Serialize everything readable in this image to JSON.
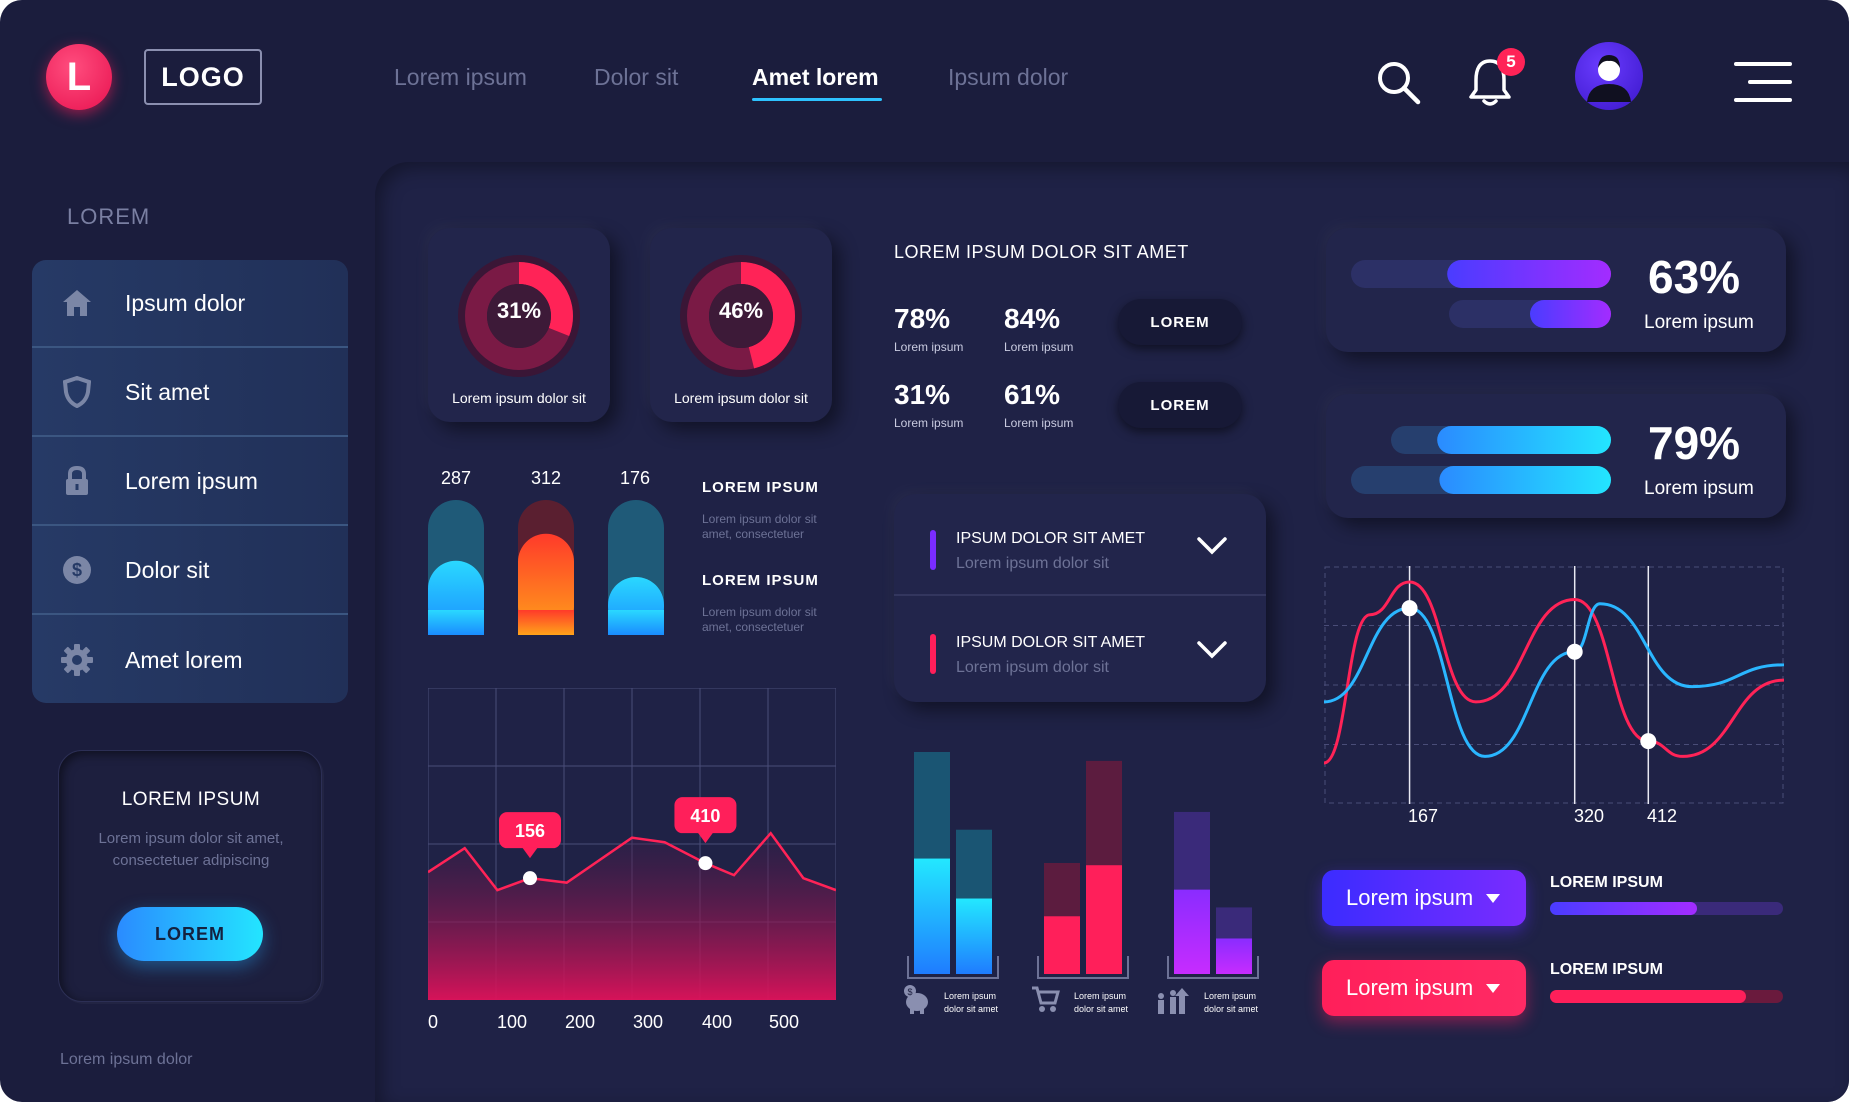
{
  "header": {
    "logo_letter": "L",
    "logo_text": "LOGO",
    "nav": [
      "Lorem ipsum",
      "Dolor sit",
      "Amet lorem",
      "Ipsum dolor"
    ],
    "active_nav": "Amet lorem",
    "notification_count": "5"
  },
  "sidebar": {
    "heading": "LOREM",
    "items": [
      {
        "label": "Ipsum dolor",
        "icon": "home-icon"
      },
      {
        "label": "Sit amet",
        "icon": "shield-icon"
      },
      {
        "label": "Lorem ipsum",
        "icon": "lock-icon"
      },
      {
        "label": "Dolor sit",
        "icon": "dollar-icon"
      },
      {
        "label": "Amet lorem",
        "icon": "gear-icon"
      }
    ],
    "promo": {
      "title": "LOREM IPSUM",
      "text": "Lorem ipsum dolor sit amet, consectetuer adipiscing",
      "button": "LOREM"
    },
    "footer": "Lorem ipsum dolor"
  },
  "donuts": [
    {
      "value": "31%",
      "fraction": 0.31,
      "label": "Lorem ipsum dolor sit"
    },
    {
      "value": "46%",
      "fraction": 0.46,
      "label": "Lorem ipsum dolor sit"
    }
  ],
  "mini_bars": {
    "values": [
      "287",
      "312",
      "176"
    ],
    "levels": [
      0.55,
      0.75,
      0.43
    ],
    "blocks": [
      {
        "title": "LOREM IPSUM",
        "text": "Lorem ipsum dolor sit amet, consectetuer"
      },
      {
        "title": "LOREM IPSUM",
        "text": "Lorem ipsum dolor sit amet, consectetuer"
      }
    ]
  },
  "stats": {
    "title": "LOREM IPSUM DOLOR SIT AMET",
    "rows": [
      {
        "items": [
          {
            "value": "78%",
            "label": "Lorem ipsum"
          },
          {
            "value": "84%",
            "label": "Lorem ipsum"
          }
        ],
        "button": "LOREM"
      },
      {
        "items": [
          {
            "value": "31%",
            "label": "Lorem ipsum"
          },
          {
            "value": "61%",
            "label": "Lorem ipsum"
          }
        ],
        "button": "LOREM"
      }
    ]
  },
  "accordion": [
    {
      "title": "IPSUM DOLOR  SIT AMET",
      "subtitle": "Lorem ipsum dolor sit",
      "color": "#7a2cff"
    },
    {
      "title": "IPSUM DOLOR  SIT AMET",
      "subtitle": "Lorem ipsum dolor sit",
      "color": "#ff1f5a"
    }
  ],
  "progress_cards": [
    {
      "value": "63%",
      "label": "Lorem ipsum",
      "fractions": [
        0.63,
        0.5
      ]
    },
    {
      "value": "79%",
      "label": "Lorem ipsum",
      "fractions": [
        0.79,
        0.66
      ]
    }
  ],
  "dropdowns": [
    {
      "label": "Lorem ipsum",
      "color": "#5b2cff"
    },
    {
      "label": "Lorem ipsum",
      "color": "#ff1f5a"
    }
  ],
  "mini_progress": [
    {
      "title": "LOREM IPSUM",
      "fraction": 0.63
    },
    {
      "title": "LOREM IPSUM",
      "fraction": 0.84
    }
  ],
  "chart_area": {
    "type": "line",
    "x_ticks": [
      "0",
      "100",
      "200",
      "300",
      "400",
      "500"
    ],
    "points": [
      [
        0,
        0.72
      ],
      [
        0.09,
        0.88
      ],
      [
        0.17,
        0.6
      ],
      [
        0.25,
        0.68
      ],
      [
        0.34,
        0.65
      ],
      [
        0.5,
        0.95
      ],
      [
        0.58,
        0.92
      ],
      [
        0.68,
        0.78
      ],
      [
        0.75,
        0.7
      ],
      [
        0.84,
        0.98
      ],
      [
        0.92,
        0.68
      ],
      [
        1.0,
        0.6
      ]
    ],
    "callouts": [
      {
        "label": "156",
        "x": 0.25
      },
      {
        "label": "410",
        "x": 0.68
      }
    ]
  },
  "chart_grouped": {
    "type": "bar",
    "groups": [
      {
        "a": 1.0,
        "a_fill": 0.52,
        "b": 0.65,
        "b_fill": 0.34,
        "color": "cyan",
        "caption": "Lorem ipsum dolor sit amet",
        "icon": "piggy-bank-icon"
      },
      {
        "a": 0.5,
        "a_fill": 0.26,
        "b": 0.96,
        "b_fill": 0.49,
        "color": "pink",
        "caption": "Lorem ipsum dolor sit amet",
        "icon": "cart-icon"
      },
      {
        "a": 0.73,
        "a_fill": 0.38,
        "b": 0.3,
        "b_fill": 0.16,
        "color": "purple",
        "caption": "Lorem ipsum dolor sit amet",
        "icon": "growth-icon"
      }
    ]
  },
  "chart_waves": {
    "type": "line",
    "x_ticks": [
      {
        "label": "167",
        "x": 0.186
      },
      {
        "label": "320",
        "x": 0.545
      },
      {
        "label": "412",
        "x": 0.705
      }
    ],
    "series_pink": [
      [
        0,
        0.17
      ],
      [
        0.1,
        0.85
      ],
      [
        0.186,
        1.0
      ],
      [
        0.33,
        0.45
      ],
      [
        0.545,
        0.92
      ],
      [
        0.705,
        0.27
      ],
      [
        0.78,
        0.2
      ],
      [
        1.0,
        0.55
      ]
    ],
    "series_blue": [
      [
        0,
        0.45
      ],
      [
        0.186,
        0.88
      ],
      [
        0.35,
        0.2
      ],
      [
        0.545,
        0.68
      ],
      [
        0.6,
        0.9
      ],
      [
        0.8,
        0.52
      ],
      [
        1.0,
        0.62
      ]
    ]
  },
  "colors": {
    "accent_pink": "#ff1f5a",
    "accent_cyan": "#23e5ff",
    "accent_purple": "#7a2cff",
    "bg": "#1b1d3d"
  }
}
